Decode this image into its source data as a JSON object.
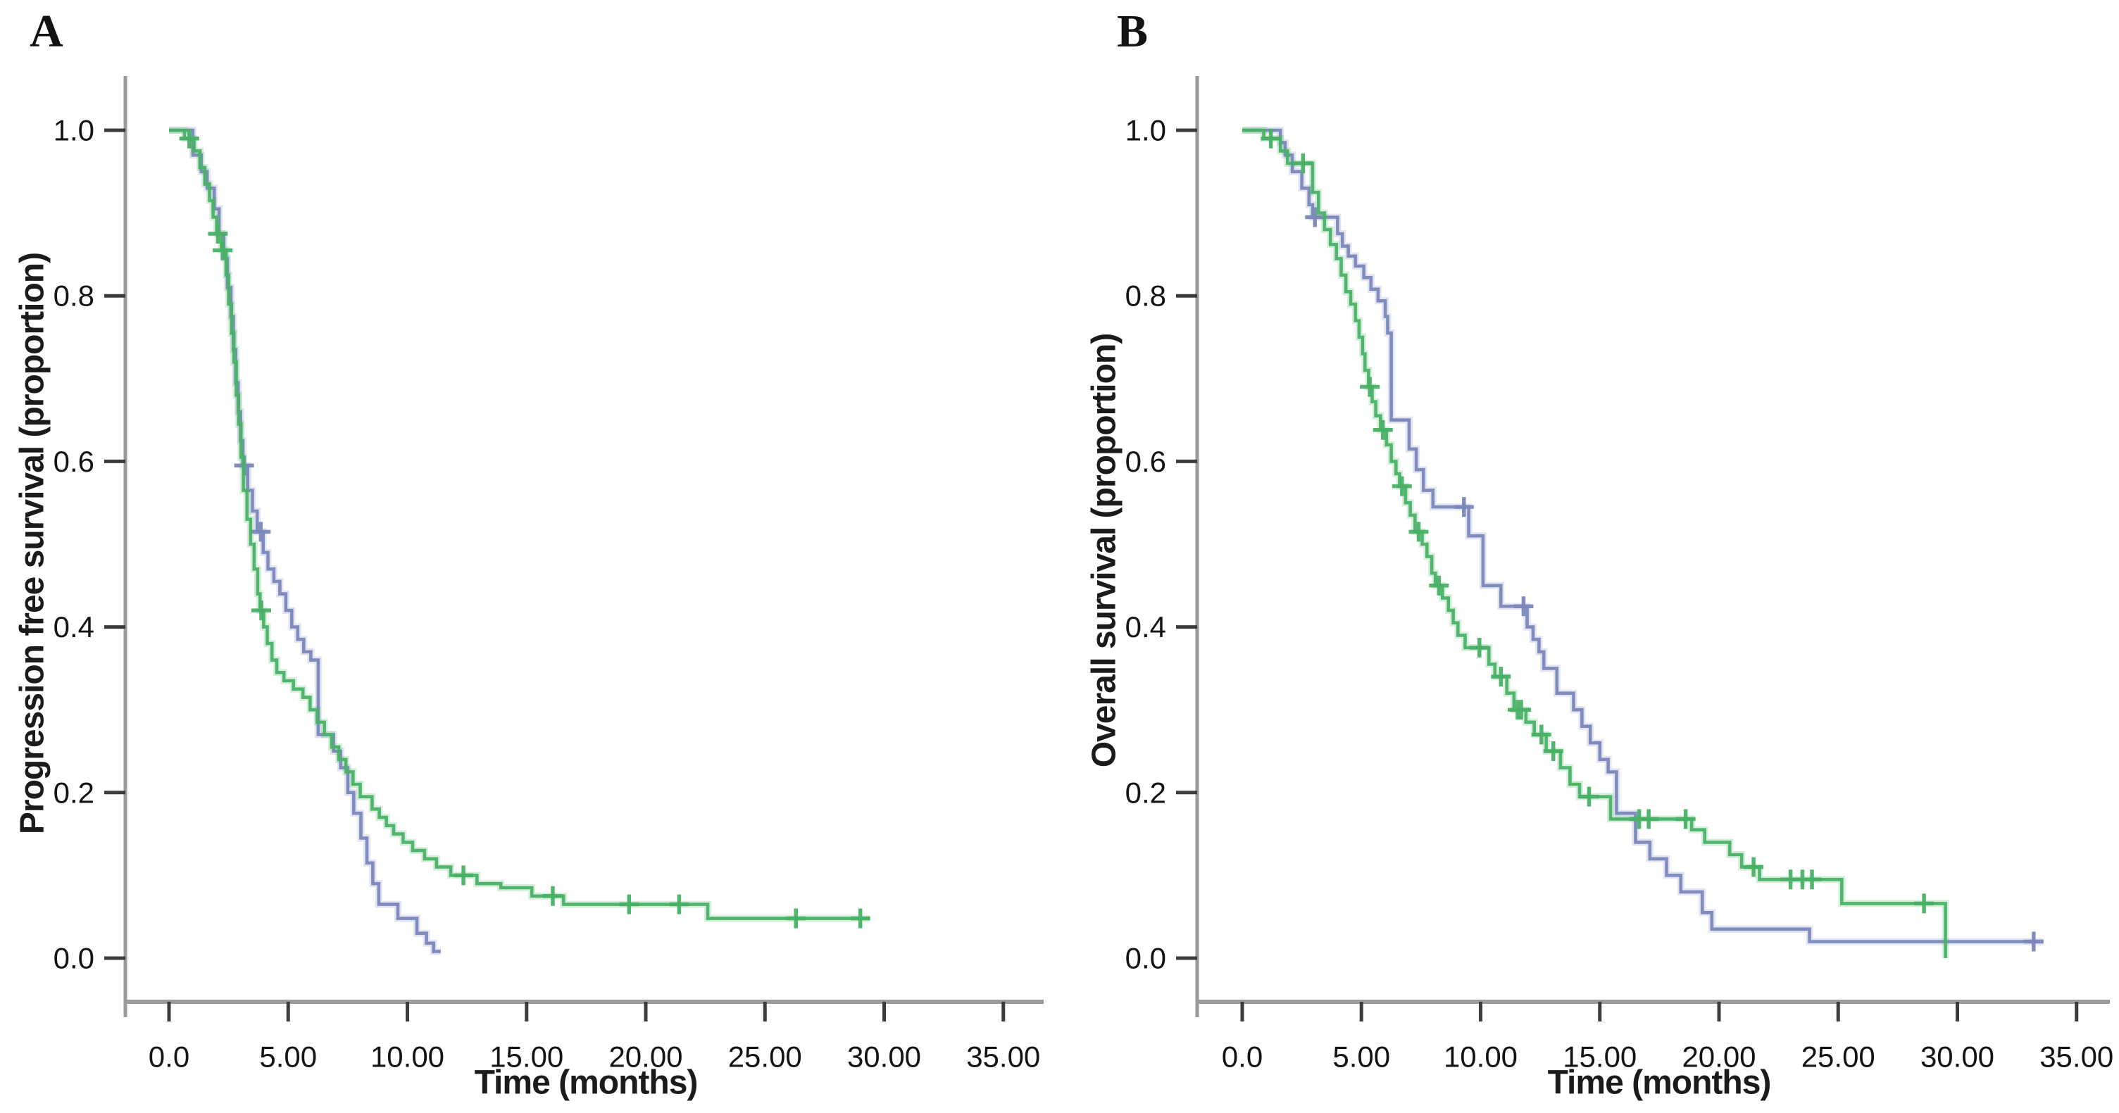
{
  "figure": {
    "background": "#ffffff",
    "axis_line_color": "#9a9a9a",
    "tick_color": "#3c3c3c",
    "tick_label_color": "#141414"
  },
  "chart_data": [
    {
      "type": "line",
      "subtype": "kaplan-meier-step",
      "panel_label": "A",
      "title": "",
      "xlabel": "Time (months)",
      "ylabel": "Progression free survival (proportion)",
      "xlim": [
        0,
        35
      ],
      "ylim": [
        0.0,
        1.0
      ],
      "grid": false,
      "legend": "none",
      "x_ticks": {
        "values": [
          0,
          5,
          10,
          15,
          20,
          25,
          30,
          35
        ],
        "labels": [
          "0.0",
          "5.00",
          "10.00",
          "15.00",
          "20.00",
          "25.00",
          "30.00",
          "35.00"
        ]
      },
      "y_ticks": {
        "values": [
          1.0,
          0.8,
          0.6,
          0.4,
          0.2,
          0.0
        ],
        "labels": [
          "1.0",
          "0.8",
          "0.6",
          "0.4",
          "0.2",
          "0.0"
        ]
      },
      "series": [
        {
          "name": "blue",
          "color": "#7b87bb",
          "end_time": 11.4,
          "steps": [
            [
              0,
              1.0
            ],
            [
              1.0,
              0.97
            ],
            [
              1.35,
              0.95
            ],
            [
              1.6,
              0.93
            ],
            [
              1.9,
              0.905
            ],
            [
              2.1,
              0.875
            ],
            [
              2.3,
              0.845
            ],
            [
              2.45,
              0.81
            ],
            [
              2.6,
              0.775
            ],
            [
              2.7,
              0.735
            ],
            [
              2.8,
              0.695
            ],
            [
              2.9,
              0.66
            ],
            [
              3.0,
              0.625
            ],
            [
              3.1,
              0.595
            ],
            [
              3.3,
              0.565
            ],
            [
              3.5,
              0.54
            ],
            [
              3.7,
              0.515
            ],
            [
              3.95,
              0.49
            ],
            [
              4.15,
              0.47
            ],
            [
              4.4,
              0.455
            ],
            [
              4.65,
              0.44
            ],
            [
              4.9,
              0.42
            ],
            [
              5.15,
              0.4
            ],
            [
              5.4,
              0.385
            ],
            [
              5.65,
              0.37
            ],
            [
              5.95,
              0.36
            ],
            [
              6.26,
              0.27
            ],
            [
              6.9,
              0.25
            ],
            [
              7.2,
              0.23
            ],
            [
              7.5,
              0.2
            ],
            [
              7.75,
              0.175
            ],
            [
              8.05,
              0.145
            ],
            [
              8.3,
              0.115
            ],
            [
              8.55,
              0.09
            ],
            [
              8.8,
              0.065
            ],
            [
              9.6,
              0.048
            ],
            [
              10.4,
              0.03
            ],
            [
              10.8,
              0.018
            ],
            [
              11.1,
              0.008
            ]
          ],
          "censor_times": [
            3.15,
            3.85
          ]
        },
        {
          "name": "green",
          "color": "#49b166",
          "end_time": 29.4,
          "steps": [
            [
              0,
              1.0
            ],
            [
              0.65,
              0.99
            ],
            [
              1.05,
              0.975
            ],
            [
              1.3,
              0.955
            ],
            [
              1.5,
              0.935
            ],
            [
              1.7,
              0.915
            ],
            [
              1.85,
              0.895
            ],
            [
              2.0,
              0.875
            ],
            [
              2.2,
              0.855
            ],
            [
              2.4,
              0.825
            ],
            [
              2.5,
              0.79
            ],
            [
              2.62,
              0.755
            ],
            [
              2.72,
              0.72
            ],
            [
              2.82,
              0.68
            ],
            [
              2.92,
              0.645
            ],
            [
              3.02,
              0.605
            ],
            [
              3.12,
              0.565
            ],
            [
              3.27,
              0.53
            ],
            [
              3.42,
              0.5
            ],
            [
              3.57,
              0.47
            ],
            [
              3.72,
              0.44
            ],
            [
              3.82,
              0.42
            ],
            [
              3.97,
              0.4
            ],
            [
              4.12,
              0.38
            ],
            [
              4.32,
              0.36
            ],
            [
              4.52,
              0.345
            ],
            [
              4.82,
              0.335
            ],
            [
              5.22,
              0.325
            ],
            [
              5.62,
              0.315
            ],
            [
              5.92,
              0.3
            ],
            [
              6.22,
              0.285
            ],
            [
              6.52,
              0.27
            ],
            [
              6.82,
              0.255
            ],
            [
              7.12,
              0.24
            ],
            [
              7.42,
              0.225
            ],
            [
              7.72,
              0.21
            ],
            [
              8.02,
              0.195
            ],
            [
              8.52,
              0.18
            ],
            [
              8.82,
              0.17
            ],
            [
              9.12,
              0.16
            ],
            [
              9.42,
              0.15
            ],
            [
              9.82,
              0.14
            ],
            [
              10.22,
              0.13
            ],
            [
              10.72,
              0.12
            ],
            [
              11.22,
              0.11
            ],
            [
              11.82,
              0.1
            ],
            [
              12.92,
              0.09
            ],
            [
              13.92,
              0.085
            ],
            [
              15.22,
              0.075
            ],
            [
              16.55,
              0.065
            ],
            [
              22.6,
              0.048
            ]
          ],
          "censor_times": [
            0.85,
            2.05,
            2.25,
            3.87,
            12.35,
            16.1,
            19.3,
            21.4,
            26.3,
            29.0
          ]
        }
      ]
    },
    {
      "type": "line",
      "subtype": "kaplan-meier-step",
      "panel_label": "B",
      "title": "",
      "xlabel": "Time (months)",
      "ylabel": "Overall survival (proportion)",
      "xlim": [
        0,
        35
      ],
      "ylim": [
        0.0,
        1.0
      ],
      "grid": false,
      "legend": "none",
      "x_ticks": {
        "values": [
          0,
          5,
          10,
          15,
          20,
          25,
          30,
          35
        ],
        "labels": [
          "0.0",
          "5.00",
          "10.00",
          "15.00",
          "20.00",
          "25.00",
          "30.00",
          "35.00"
        ]
      },
      "y_ticks": {
        "values": [
          1.0,
          0.8,
          0.6,
          0.4,
          0.2,
          0.0
        ],
        "labels": [
          "1.0",
          "0.8",
          "0.6",
          "0.4",
          "0.2",
          "0.0"
        ]
      },
      "series": [
        {
          "name": "blue",
          "color": "#7b87bb",
          "end_time": 33.6,
          "steps": [
            [
              0,
              1.0
            ],
            [
              1.6,
              0.985
            ],
            [
              1.8,
              0.97
            ],
            [
              2.1,
              0.95
            ],
            [
              2.5,
              0.93
            ],
            [
              2.8,
              0.91
            ],
            [
              2.95,
              0.895
            ],
            [
              4.0,
              0.875
            ],
            [
              4.2,
              0.86
            ],
            [
              4.45,
              0.848
            ],
            [
              4.75,
              0.836
            ],
            [
              5.1,
              0.822
            ],
            [
              5.4,
              0.808
            ],
            [
              5.7,
              0.794
            ],
            [
              6.0,
              0.775
            ],
            [
              6.1,
              0.755
            ],
            [
              6.25,
              0.65
            ],
            [
              7.0,
              0.615
            ],
            [
              7.3,
              0.59
            ],
            [
              7.6,
              0.565
            ],
            [
              8.0,
              0.545
            ],
            [
              9.5,
              0.51
            ],
            [
              10.1,
              0.45
            ],
            [
              10.85,
              0.425
            ],
            [
              11.95,
              0.4
            ],
            [
              12.2,
              0.385
            ],
            [
              12.45,
              0.37
            ],
            [
              12.65,
              0.35
            ],
            [
              13.2,
              0.32
            ],
            [
              13.9,
              0.3
            ],
            [
              14.25,
              0.28
            ],
            [
              14.6,
              0.26
            ],
            [
              15.0,
              0.24
            ],
            [
              15.35,
              0.225
            ],
            [
              15.7,
              0.175
            ],
            [
              16.5,
              0.14
            ],
            [
              17.1,
              0.12
            ],
            [
              17.8,
              0.1
            ],
            [
              18.4,
              0.08
            ],
            [
              19.3,
              0.055
            ],
            [
              19.7,
              0.035
            ],
            [
              23.8,
              0.02
            ]
          ],
          "censor_times": [
            3.05,
            9.3,
            11.8,
            33.2
          ]
        },
        {
          "name": "green",
          "color": "#49b166",
          "end_time": 29.5,
          "steps": [
            [
              0,
              1.0
            ],
            [
              0.9,
              0.99
            ],
            [
              1.6,
              0.975
            ],
            [
              1.9,
              0.96
            ],
            [
              2.95,
              0.925
            ],
            [
              3.2,
              0.9
            ],
            [
              3.45,
              0.88
            ],
            [
              3.7,
              0.862
            ],
            [
              3.95,
              0.845
            ],
            [
              4.15,
              0.825
            ],
            [
              4.35,
              0.805
            ],
            [
              4.55,
              0.79
            ],
            [
              4.75,
              0.77
            ],
            [
              4.9,
              0.75
            ],
            [
              5.05,
              0.73
            ],
            [
              5.15,
              0.71
            ],
            [
              5.3,
              0.69
            ],
            [
              5.45,
              0.672
            ],
            [
              5.6,
              0.655
            ],
            [
              5.8,
              0.638
            ],
            [
              6.05,
              0.62
            ],
            [
              6.25,
              0.6
            ],
            [
              6.45,
              0.585
            ],
            [
              6.6,
              0.57
            ],
            [
              6.85,
              0.55
            ],
            [
              7.05,
              0.535
            ],
            [
              7.25,
              0.515
            ],
            [
              7.55,
              0.5
            ],
            [
              7.75,
              0.485
            ],
            [
              7.95,
              0.465
            ],
            [
              8.1,
              0.45
            ],
            [
              8.4,
              0.435
            ],
            [
              8.65,
              0.42
            ],
            [
              8.85,
              0.405
            ],
            [
              9.05,
              0.39
            ],
            [
              9.35,
              0.375
            ],
            [
              10.35,
              0.355
            ],
            [
              10.6,
              0.34
            ],
            [
              11.1,
              0.32
            ],
            [
              11.4,
              0.3
            ],
            [
              11.9,
              0.285
            ],
            [
              12.25,
              0.27
            ],
            [
              12.75,
              0.25
            ],
            [
              13.35,
              0.23
            ],
            [
              13.75,
              0.21
            ],
            [
              14.15,
              0.195
            ],
            [
              15.45,
              0.168
            ],
            [
              18.85,
              0.155
            ],
            [
              19.4,
              0.14
            ],
            [
              20.45,
              0.125
            ],
            [
              20.95,
              0.11
            ],
            [
              21.7,
              0.095
            ],
            [
              25.15,
              0.066
            ],
            [
              29.5,
              0.0
            ]
          ],
          "censor_times": [
            1.2,
            2.55,
            5.35,
            5.9,
            6.7,
            7.4,
            8.25,
            9.95,
            10.85,
            11.55,
            11.7,
            12.55,
            13.05,
            14.55,
            16.65,
            17.05,
            18.6,
            21.45,
            23.0,
            23.5,
            23.9,
            28.6
          ]
        }
      ]
    }
  ]
}
